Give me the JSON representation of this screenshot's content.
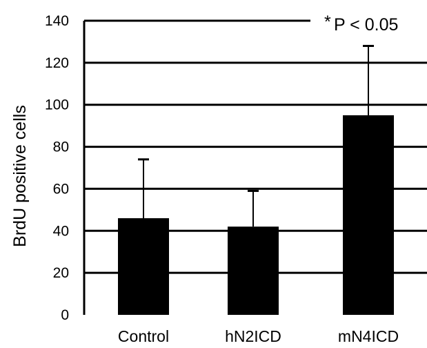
{
  "chart_data": {
    "type": "bar",
    "categories": [
      "Control",
      "hN2ICD",
      "mN4ICD"
    ],
    "values": [
      46,
      42,
      95
    ],
    "errors": [
      28,
      17,
      33
    ],
    "title": "",
    "xlabel": "",
    "ylabel": "BrdU positive cells",
    "ylim": [
      0,
      140
    ],
    "yticks": [
      0,
      20,
      40,
      60,
      80,
      100,
      120,
      140
    ],
    "grid": true,
    "annotation": {
      "star": "*",
      "text": "P < 0.05"
    },
    "colors": {
      "bar": "#000000",
      "grid": "#000000"
    }
  }
}
